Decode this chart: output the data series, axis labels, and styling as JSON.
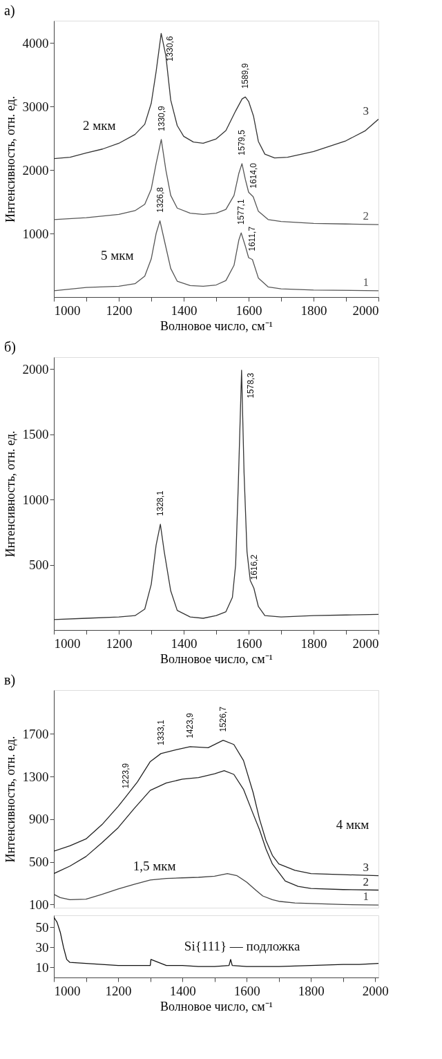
{
  "chart_data": [
    {
      "type": "line",
      "title": "а)",
      "xlabel": "Волновое число, см⁻¹",
      "ylabel": "Интенсивность, отн. ед.",
      "xlim": [
        1000,
        2000
      ],
      "ylim": [
        0,
        4350
      ],
      "xticks": [
        1000,
        {
          "value": 1100,
          "label": null
        },
        1200,
        {
          "value": 1300,
          "label": null
        },
        1400,
        {
          "value": 1500,
          "label": null
        },
        1600,
        {
          "value": 1700,
          "label": null
        },
        1800,
        {
          "value": 1900,
          "label": null
        },
        2000
      ],
      "yticks": [
        1000,
        2000,
        3000,
        4000
      ],
      "series": [
        {
          "name": "3",
          "color": "#333333",
          "x": [
            1000,
            1050,
            1100,
            1150,
            1200,
            1250,
            1280,
            1300,
            1315,
            1330.6,
            1345,
            1360,
            1380,
            1400,
            1430,
            1460,
            1500,
            1530,
            1560,
            1580,
            1589.9,
            1600,
            1615,
            1630,
            1650,
            1680,
            1720,
            1800,
            1900,
            1960,
            2000
          ],
          "values": [
            2180,
            2200,
            2270,
            2330,
            2420,
            2560,
            2720,
            3050,
            3550,
            4150,
            3800,
            3100,
            2700,
            2530,
            2440,
            2420,
            2490,
            2620,
            2930,
            3120,
            3150,
            3080,
            2850,
            2450,
            2250,
            2190,
            2200,
            2290,
            2460,
            2620,
            2800
          ]
        },
        {
          "name": "2",
          "color": "#555555",
          "x": [
            1000,
            1100,
            1200,
            1250,
            1280,
            1300,
            1315,
            1330.9,
            1345,
            1360,
            1380,
            1420,
            1460,
            1500,
            1530,
            1555,
            1570,
            1579.5,
            1590,
            1600,
            1614.0,
            1630,
            1660,
            1700,
            1800,
            1900,
            2000
          ],
          "values": [
            1220,
            1250,
            1300,
            1360,
            1460,
            1700,
            2100,
            2480,
            2000,
            1600,
            1400,
            1320,
            1300,
            1320,
            1380,
            1600,
            1950,
            2100,
            1850,
            1650,
            1580,
            1350,
            1220,
            1190,
            1160,
            1150,
            1140
          ]
        },
        {
          "name": "1",
          "color": "#555555",
          "x": [
            1000,
            1100,
            1200,
            1250,
            1280,
            1300,
            1315,
            1326.8,
            1340,
            1360,
            1380,
            1420,
            1460,
            1500,
            1530,
            1555,
            1570,
            1577.1,
            1590,
            1600,
            1611.7,
            1630,
            1660,
            1700,
            1800,
            2000
          ],
          "values": [
            100,
            150,
            170,
            210,
            330,
            600,
            1000,
            1200,
            900,
            450,
            250,
            180,
            170,
            190,
            260,
            500,
            900,
            1010,
            800,
            620,
            590,
            300,
            160,
            130,
            110,
            100
          ]
        }
      ],
      "annotations": [
        {
          "text": "1330,6",
          "x": 1330.6,
          "y": 4150
        },
        {
          "text": "1589,9",
          "x": 1589.9,
          "y": 3150
        },
        {
          "text": "1330,9",
          "x": 1330.9,
          "y": 2480
        },
        {
          "text": "1579,5",
          "x": 1579.5,
          "y": 2100
        },
        {
          "text": "1614,0",
          "x": 1614.0,
          "y": 1580
        },
        {
          "text": "1326,8",
          "x": 1326.8,
          "y": 1200
        },
        {
          "text": "1577,1",
          "x": 1577.1,
          "y": 1010
        },
        {
          "text": "1611,7",
          "x": 1611.7,
          "y": 590
        },
        "2 мкм",
        "5 мкм"
      ]
    },
    {
      "type": "line",
      "title": "б)",
      "xlabel": "Волновое число, см⁻¹",
      "ylabel": "Интенсивность, отн. ед.",
      "xlim": [
        1000,
        2000
      ],
      "ylim": [
        0,
        2090
      ],
      "xticks": [
        1000,
        {
          "value": 1100,
          "label": null
        },
        1200,
        {
          "value": 1300,
          "label": null
        },
        1400,
        {
          "value": 1500,
          "label": null
        },
        1600,
        {
          "value": 1700,
          "label": null
        },
        1800,
        {
          "value": 1900,
          "label": null
        },
        2000
      ],
      "yticks": [
        500,
        1000,
        1500,
        2000
      ],
      "series": [
        {
          "color": "#333333",
          "x": [
            1000,
            1100,
            1200,
            1250,
            1280,
            1300,
            1315,
            1328.1,
            1340,
            1360,
            1380,
            1420,
            1460,
            1500,
            1530,
            1550,
            1560,
            1568,
            1578.3,
            1586,
            1595,
            1605,
            1616.2,
            1630,
            1650,
            1700,
            1800,
            1900,
            2000
          ],
          "values": [
            80,
            90,
            100,
            110,
            160,
            350,
            650,
            810,
            600,
            300,
            150,
            100,
            90,
            110,
            140,
            250,
            500,
            1100,
            1990,
            1200,
            600,
            380,
            320,
            180,
            110,
            100,
            110,
            115,
            120
          ]
        }
      ],
      "annotations": [
        {
          "text": "1328,1",
          "x": 1328.1,
          "y": 810
        },
        {
          "text": "1578,3",
          "x": 1578.3,
          "y": 1990
        },
        {
          "text": "1616,2",
          "x": 1616.2,
          "y": 320
        }
      ]
    },
    {
      "type": "line",
      "title": "в)",
      "ylabel": "Интенсивность, отн. ед.",
      "xlim": [
        1000,
        2010
      ],
      "ylim": [
        70,
        2110
      ],
      "tick_labels": "y",
      "yticks": [
        100,
        500,
        900,
        1300,
        1700
      ],
      "series": [
        {
          "name": "3",
          "color": "#222222",
          "x": [
            1000,
            1050,
            1100,
            1150,
            1200,
            1223.9,
            1260,
            1300,
            1333.1,
            1380,
            1423.9,
            1480,
            1526.7,
            1560,
            1590,
            1620,
            1640,
            1660,
            1680,
            1700,
            1750,
            1800,
            1900,
            2010
          ],
          "values": [
            600,
            650,
            715,
            850,
            1020,
            1110,
            1250,
            1440,
            1515,
            1550,
            1580,
            1570,
            1640,
            1600,
            1450,
            1150,
            900,
            700,
            560,
            480,
            420,
            390,
            380,
            370
          ]
        },
        {
          "name": "2",
          "color": "#222222",
          "x": [
            1000,
            1050,
            1100,
            1150,
            1200,
            1250,
            1300,
            1350,
            1400,
            1450,
            1500,
            1530,
            1560,
            1590,
            1620,
            1640,
            1660,
            1680,
            1720,
            1760,
            1800,
            1900,
            2010
          ],
          "values": [
            390,
            460,
            550,
            680,
            820,
            1000,
            1170,
            1240,
            1275,
            1290,
            1325,
            1355,
            1320,
            1180,
            950,
            800,
            620,
            480,
            320,
            270,
            250,
            240,
            235
          ]
        },
        {
          "name": "1",
          "color": "#444444",
          "x": [
            1000,
            1020,
            1050,
            1100,
            1150,
            1200,
            1250,
            1300,
            1350,
            1400,
            1450,
            1500,
            1540,
            1570,
            1600,
            1630,
            1650,
            1680,
            1700,
            1750,
            1800,
            1900,
            2010
          ],
          "values": [
            195,
            165,
            145,
            150,
            195,
            245,
            290,
            330,
            345,
            350,
            355,
            365,
            390,
            370,
            310,
            230,
            180,
            145,
            130,
            115,
            110,
            100,
            95
          ]
        }
      ],
      "annotations": [
        {
          "text": "1223,9",
          "x": 1223.9,
          "y": 1110
        },
        {
          "text": "1333,1",
          "x": 1333.1,
          "y": 1515
        },
        {
          "text": "1423,9",
          "x": 1423.9,
          "y": 1580
        },
        {
          "text": "1526,7",
          "x": 1526.7,
          "y": 1640
        },
        "4 мкм",
        "1,5 мкм"
      ]
    },
    {
      "type": "line",
      "xlabel": "Волновое число, см⁻¹",
      "xlim": [
        1000,
        2010
      ],
      "ylim": [
        0,
        62
      ],
      "xticks": [
        1000,
        {
          "value": 1100,
          "label": null
        },
        1200,
        {
          "value": 1300,
          "label": null
        },
        1400,
        {
          "value": 1500,
          "label": null
        },
        1600,
        {
          "value": 1700,
          "label": null
        },
        1800,
        {
          "value": 1900,
          "label": null
        },
        2000
      ],
      "yticks": [
        10,
        30,
        50
      ],
      "series": [
        {
          "color": "#111111",
          "x": [
            1000,
            1010,
            1020,
            1030,
            1040,
            1050,
            1100,
            1150,
            1200,
            1250,
            1300,
            1302,
            1350,
            1400,
            1450,
            1500,
            1545,
            1550,
            1555,
            1600,
            1700,
            1800,
            1900,
            1950,
            2010
          ],
          "values": [
            60,
            55,
            45,
            30,
            18,
            15,
            14,
            13,
            12,
            12,
            12,
            18,
            12,
            12,
            11,
            11,
            12,
            18,
            12,
            11,
            11,
            12,
            13,
            13,
            14
          ]
        }
      ],
      "annotations": [
        "Si{111} — подложка"
      ]
    }
  ]
}
